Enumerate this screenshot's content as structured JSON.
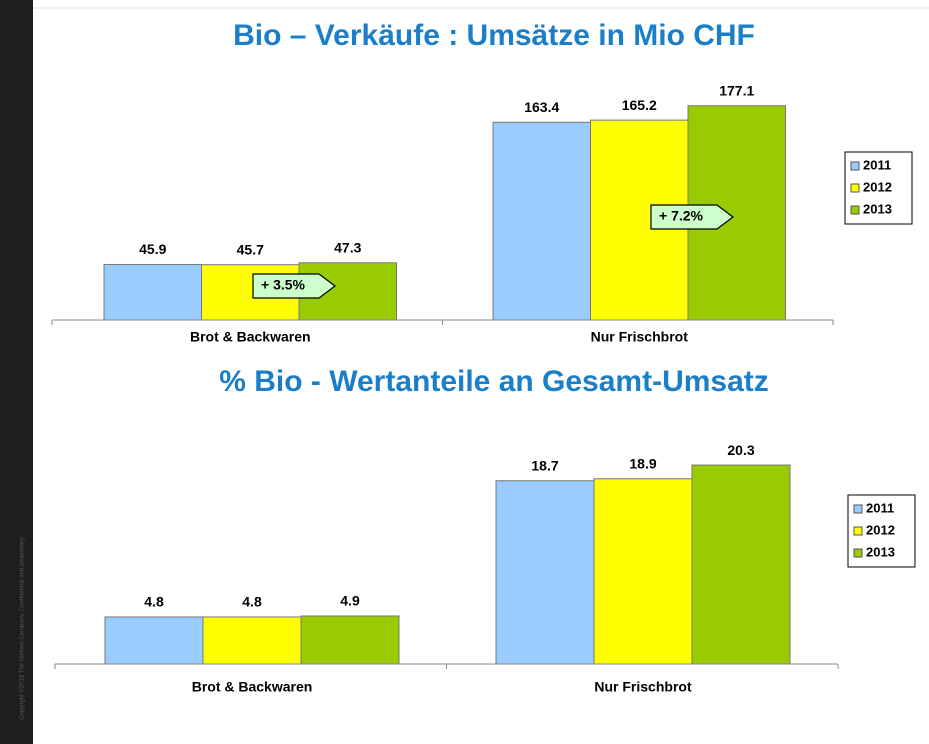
{
  "footer": "Copyright ©2013 The Nielsen Company. Confidential and proprietary.",
  "chart_data": [
    {
      "type": "bar",
      "title": "Bio – Verkäufe : Umsätze in Mio CHF",
      "categories": [
        "Brot & Backwaren",
        "Nur Frischbrot"
      ],
      "series": [
        {
          "name": "2011",
          "color": "#99ccff",
          "values": [
            45.9,
            163.4
          ]
        },
        {
          "name": "2012",
          "color": "#ffff00",
          "values": [
            45.7,
            165.2
          ]
        },
        {
          "name": "2013",
          "color": "#99cc00",
          "values": [
            47.3,
            177.1
          ]
        }
      ],
      "ylim": [
        0,
        200
      ],
      "legend": "right",
      "annotations": [
        "+ 3.5%",
        "+ 7.2%"
      ]
    },
    {
      "type": "bar",
      "title": "% Bio - Wertanteile an Gesamt-Umsatz",
      "categories": [
        "Brot & Backwaren",
        "Nur Frischbrot"
      ],
      "series": [
        {
          "name": "2011",
          "color": "#99ccff",
          "values": [
            4.8,
            18.7
          ]
        },
        {
          "name": "2012",
          "color": "#ffff00",
          "values": [
            4.8,
            18.9
          ]
        },
        {
          "name": "2013",
          "color": "#99cc00",
          "values": [
            4.9,
            20.3
          ]
        }
      ],
      "ylim": [
        0,
        25
      ],
      "legend": "right"
    }
  ]
}
